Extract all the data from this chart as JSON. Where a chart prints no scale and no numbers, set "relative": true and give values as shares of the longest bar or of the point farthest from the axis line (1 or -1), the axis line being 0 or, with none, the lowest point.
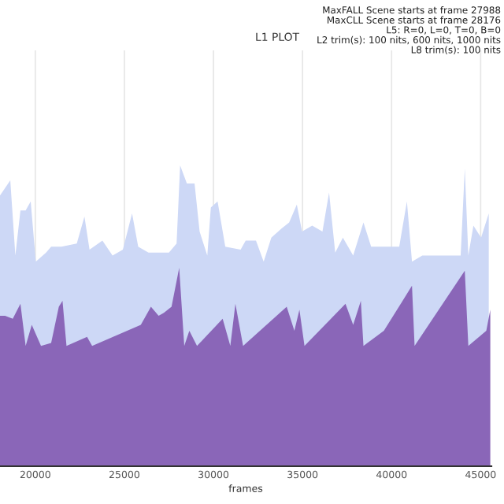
{
  "chart_data": {
    "type": "area",
    "title": "L1 PLOT",
    "xlabel": "frames",
    "relative": true,
    "grid": "x",
    "annotations": [
      "MaxFALL Scene starts at frame 27988",
      "MaxCLL Scene starts at frame 28176",
      "L5: R=0, L=0, T=0, B=0",
      "L2 trim(s): 100 nits, 600 nits, 1000 nits",
      "L8 trim(s): 100 nits"
    ],
    "xlim": [
      18017,
      45603
    ],
    "xticks": [
      20000,
      25000,
      30000,
      35000,
      40000,
      45000
    ],
    "series": [
      {
        "color": "#cdd8f6",
        "x": [
          18017,
          18595,
          18879,
          19164,
          19457,
          19741,
          20026,
          20603,
          20888,
          21465,
          22327,
          22758,
          23043,
          23767,
          24336,
          24913,
          25431,
          25775,
          26353,
          26922,
          27499,
          27930,
          28129,
          28508,
          28939,
          29223,
          29654,
          29853,
          30232,
          30663,
          31525,
          31809,
          32387,
          32818,
          33249,
          33818,
          34249,
          34680,
          34973,
          35542,
          36119,
          36490,
          36835,
          37266,
          37843,
          38421,
          38852,
          39567,
          40429,
          40860,
          41145,
          41722,
          42731,
          43877,
          44109,
          44308,
          44593,
          45024,
          45455
        ],
        "values": [
          0.9,
          0.95,
          0.7,
          0.85,
          0.85,
          0.88,
          0.68,
          0.71,
          0.73,
          0.73,
          0.74,
          0.83,
          0.72,
          0.75,
          0.7,
          0.72,
          0.84,
          0.73,
          0.71,
          0.71,
          0.71,
          0.74,
          1.0,
          0.94,
          0.94,
          0.78,
          0.7,
          0.86,
          0.88,
          0.73,
          0.72,
          0.75,
          0.75,
          0.68,
          0.76,
          0.79,
          0.81,
          0.87,
          0.78,
          0.8,
          0.78,
          0.91,
          0.71,
          0.76,
          0.7,
          0.81,
          0.73,
          0.73,
          0.73,
          0.88,
          0.68,
          0.7,
          0.7,
          0.7,
          0.99,
          0.7,
          0.8,
          0.76,
          0.84
        ]
      },
      {
        "color": "#8a66b8",
        "x": [
          18017,
          18302,
          18733,
          19164,
          19457,
          19801,
          20319,
          20888,
          21319,
          21526,
          21750,
          22905,
          23189,
          25922,
          26491,
          26922,
          27215,
          27646,
          28077,
          28361,
          28646,
          29077,
          30516,
          30947,
          31232,
          31663,
          34111,
          34542,
          34826,
          35111,
          37412,
          37843,
          38274,
          38421,
          39567,
          41145,
          41291,
          44109,
          44308,
          45317,
          45541
        ],
        "values": [
          0.5,
          0.5,
          0.49,
          0.54,
          0.4,
          0.47,
          0.4,
          0.41,
          0.53,
          0.55,
          0.4,
          0.43,
          0.4,
          0.47,
          0.53,
          0.5,
          0.51,
          0.53,
          0.66,
          0.4,
          0.45,
          0.4,
          0.49,
          0.4,
          0.54,
          0.4,
          0.53,
          0.45,
          0.52,
          0.4,
          0.54,
          0.47,
          0.55,
          0.4,
          0.45,
          0.6,
          0.4,
          0.65,
          0.4,
          0.45,
          0.52
        ]
      }
    ]
  }
}
